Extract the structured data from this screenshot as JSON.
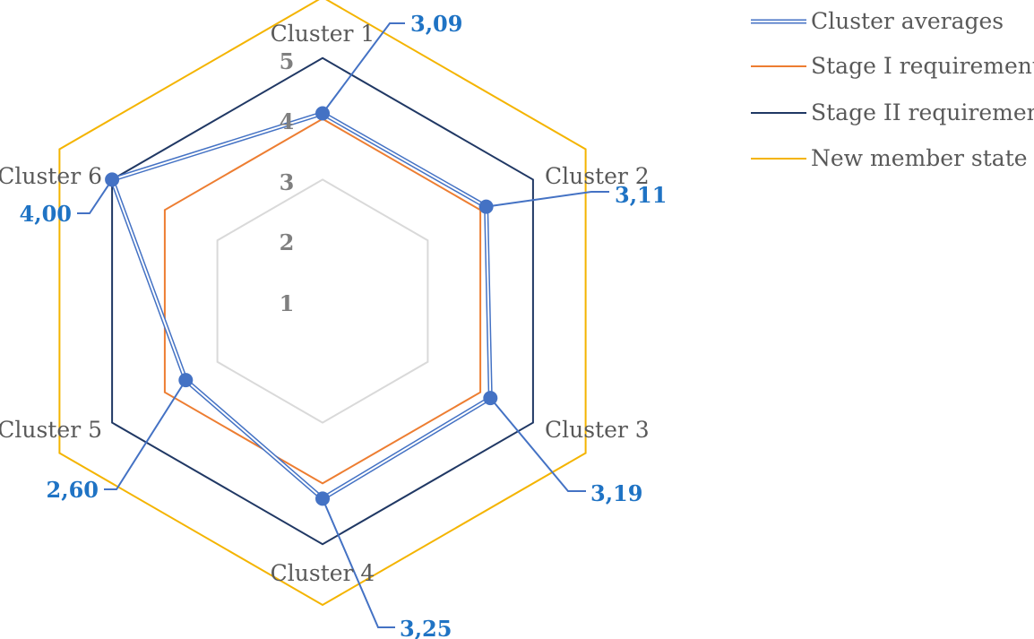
{
  "chart_data": {
    "type": "radar",
    "categories": [
      "Cluster 1",
      "Cluster 2",
      "Cluster 3",
      "Cluster 4",
      "Cluster 5",
      "Cluster 6"
    ],
    "rlim": [
      0,
      5
    ],
    "ticks": [
      "1",
      "2",
      "3",
      "4",
      "5"
    ],
    "grid": false,
    "legend_position": "top-right",
    "series": [
      {
        "name": "Cluster averages",
        "values": [
          3.09,
          3.11,
          3.19,
          3.25,
          2.6,
          4.0
        ],
        "data_labels": [
          "3,09",
          "3,11",
          "3,19",
          "3,25",
          "2,60",
          "4,00"
        ],
        "color": "#9dc3e6",
        "outline": "#4472c4",
        "marker_color": "#4472c4",
        "style": "double-line"
      },
      {
        "name": "Stage I requirement",
        "values": [
          3,
          3,
          3,
          3,
          3,
          3
        ],
        "color": "#ed7d31"
      },
      {
        "name": "Stage II requirement",
        "values": [
          4,
          4,
          4,
          4,
          4,
          4
        ],
        "color": "#203864"
      },
      {
        "name": "New member state",
        "values": [
          5,
          5,
          5,
          5,
          5,
          5
        ],
        "color": "#f4b400"
      }
    ]
  }
}
